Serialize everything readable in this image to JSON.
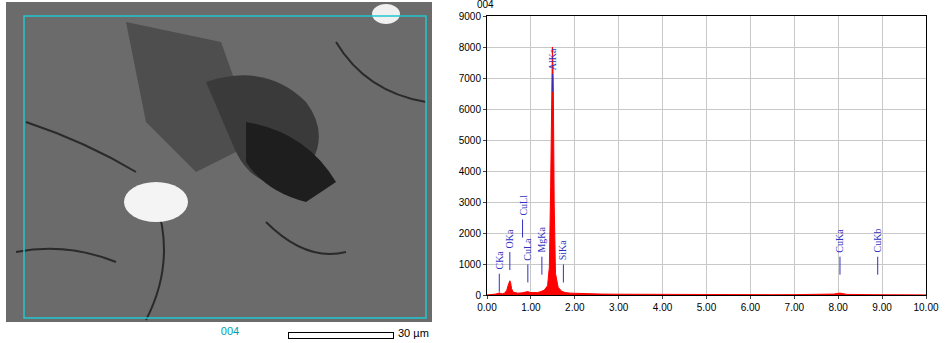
{
  "image_panel": {
    "label": "004",
    "scale_bar_label": "30 µm"
  },
  "chart_data": {
    "type": "area",
    "title": "004",
    "color": "#ff0000",
    "x": [
      0.0,
      0.1,
      0.2,
      0.25,
      0.28,
      0.31,
      0.35,
      0.4,
      0.45,
      0.48,
      0.5,
      0.52,
      0.54,
      0.56,
      0.6,
      0.7,
      0.8,
      0.88,
      0.93,
      0.98,
      1.05,
      1.15,
      1.2,
      1.25,
      1.3,
      1.38,
      1.42,
      1.45,
      1.47,
      1.49,
      1.51,
      1.53,
      1.56,
      1.62,
      1.7,
      1.74,
      1.78,
      1.9,
      2.2,
      2.6,
      3.0,
      3.5,
      4.0,
      4.5,
      5.0,
      5.5,
      6.0,
      6.5,
      7.0,
      7.5,
      7.9,
      7.98,
      8.04,
      8.1,
      8.2,
      8.8,
      8.9,
      9.0,
      9.5,
      10.0
    ],
    "values": [
      0,
      10,
      30,
      50,
      70,
      50,
      40,
      60,
      150,
      300,
      430,
      460,
      380,
      200,
      90,
      60,
      70,
      90,
      110,
      80,
      70,
      80,
      100,
      130,
      150,
      300,
      900,
      3500,
      7000,
      8000,
      6800,
      3000,
      700,
      250,
      120,
      100,
      80,
      60,
      40,
      30,
      25,
      20,
      15,
      12,
      10,
      10,
      10,
      10,
      12,
      15,
      30,
      50,
      60,
      45,
      20,
      10,
      15,
      8,
      5,
      3
    ],
    "xlim": [
      0,
      10
    ],
    "xticks": [
      {
        "value": 0,
        "label": "0.00"
      },
      {
        "value": 1,
        "label": "1.00"
      },
      {
        "value": 2,
        "label": "2.00"
      },
      {
        "value": 3,
        "label": "3.00"
      },
      {
        "value": 4,
        "label": "4.00"
      },
      {
        "value": 5,
        "label": "5.00"
      },
      {
        "value": 6,
        "label": "6.00"
      },
      {
        "value": 7,
        "label": "7.00"
      },
      {
        "value": 8,
        "label": "8.00"
      },
      {
        "value": 9,
        "label": "9.00"
      },
      {
        "value": 10,
        "label": "10.00"
      }
    ],
    "ylim": [
      0,
      9000
    ],
    "yticks": [
      0,
      1000,
      2000,
      3000,
      4000,
      5000,
      6000,
      7000,
      8000,
      9000
    ],
    "grid": true,
    "annotations": [
      {
        "text": "CKa",
        "x": 0.28,
        "y": 750
      },
      {
        "text": "OKa",
        "x": 0.52,
        "y": 1450
      },
      {
        "text": "CuLl",
        "x": 0.81,
        "y": 2500
      },
      {
        "text": "CuLa",
        "x": 0.93,
        "y": 1050
      },
      {
        "text": "MgKa",
        "x": 1.25,
        "y": 1300
      },
      {
        "text": "AlKa",
        "x": 1.49,
        "y": 7200
      },
      {
        "text": "SiKa",
        "x": 1.74,
        "y": 1050
      },
      {
        "text": "CuKa",
        "x": 8.04,
        "y": 1300
      },
      {
        "text": "CuKb",
        "x": 8.9,
        "y": 1300
      }
    ]
  }
}
